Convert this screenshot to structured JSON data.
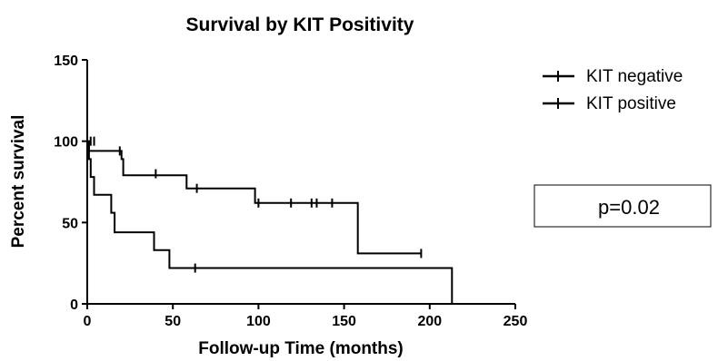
{
  "chart_data": {
    "type": "line",
    "title": "Survival by KIT Positivity",
    "xlabel": "Follow-up Time (months)",
    "ylabel": "Percent survival",
    "xlim": [
      0,
      250
    ],
    "ylim": [
      0,
      150
    ],
    "x_ticks": [
      "0",
      "50",
      "100",
      "150",
      "200",
      "250"
    ],
    "y_ticks": [
      "0",
      "50",
      "100",
      "150"
    ],
    "grid": false,
    "legend_position": "top-right",
    "annotation": "p=0.02",
    "series": [
      {
        "name": "KIT negative",
        "step_points": [
          [
            0,
            100
          ],
          [
            1,
            100
          ],
          [
            1,
            94
          ],
          [
            20,
            94
          ],
          [
            20,
            89
          ],
          [
            21,
            89
          ],
          [
            21,
            79
          ],
          [
            58,
            79
          ],
          [
            58,
            71
          ],
          [
            98,
            71
          ],
          [
            98,
            62
          ],
          [
            158,
            62
          ],
          [
            158,
            31
          ],
          [
            195,
            31
          ]
        ],
        "censored": [
          [
            4,
            100
          ],
          [
            19,
            94
          ],
          [
            40,
            80
          ],
          [
            64,
            71
          ],
          [
            100,
            62
          ],
          [
            119,
            62
          ],
          [
            131,
            62
          ],
          [
            134,
            62
          ],
          [
            143,
            62
          ],
          [
            195,
            31
          ]
        ]
      },
      {
        "name": "KIT positive",
        "step_points": [
          [
            0,
            100
          ],
          [
            1,
            100
          ],
          [
            1,
            89
          ],
          [
            2,
            89
          ],
          [
            2,
            78
          ],
          [
            4,
            78
          ],
          [
            4,
            67
          ],
          [
            14,
            67
          ],
          [
            14,
            56
          ],
          [
            16,
            56
          ],
          [
            16,
            44
          ],
          [
            39,
            44
          ],
          [
            39,
            33
          ],
          [
            48,
            33
          ],
          [
            48,
            22
          ],
          [
            213,
            22
          ],
          [
            213,
            0
          ]
        ],
        "censored": [
          [
            2,
            100
          ],
          [
            63,
            22
          ]
        ]
      }
    ]
  }
}
